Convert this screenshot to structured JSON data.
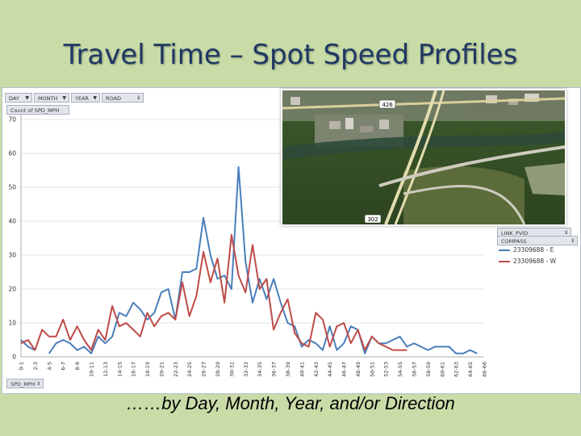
{
  "slide": {
    "title": "Travel Time – Spot Speed Profiles",
    "caption": "……by Day, Month, Year, and/or Direction"
  },
  "filters": {
    "day": "DAY",
    "month": "MONTH",
    "year": "YEAR",
    "road": "ROAD",
    "measure": "Count of SPD_MPH",
    "axis_field": "SPD_MPH",
    "link_field": "LINK_PVID",
    "compass_field": "COMPASS"
  },
  "map": {
    "shield_north": "426",
    "shield_south": "302"
  },
  "colors": {
    "east": "#4a7ebb",
    "west": "#be4b48",
    "title": "#1f3864",
    "background": "#c9dca8"
  },
  "chart_data": {
    "type": "line",
    "title": "",
    "xlabel": "SPD_MPH",
    "ylabel": "Count of SPD_MPH",
    "ylim": [
      0,
      70
    ],
    "yticks": [
      0,
      10,
      20,
      30,
      40,
      50,
      60,
      70
    ],
    "grid": true,
    "legend": "right",
    "categories": [
      "0-1",
      "2-3",
      "4-5",
      "6-7",
      "8-9",
      "10-11",
      "12-13",
      "14-15",
      "16-17",
      "18-19",
      "20-21",
      "22-23",
      "24-25",
      "26-27",
      "28-29",
      "30-31",
      "32-33",
      "34-35",
      "36-37",
      "38-39",
      "40-41",
      "42-43",
      "44-45",
      "46-47",
      "48-49",
      "50-51",
      "52-53",
      "54-55",
      "56-57",
      "58-59",
      "60-61",
      "62-63",
      "64-65",
      "66-66"
    ],
    "x": [
      0,
      1,
      2,
      3,
      4,
      5,
      6,
      7,
      8,
      9,
      10,
      11,
      12,
      13,
      14,
      15,
      16,
      17,
      18,
      19,
      20,
      21,
      22,
      23,
      24,
      25,
      26,
      27,
      28,
      29,
      30,
      31,
      32,
      33,
      34,
      35,
      36,
      37,
      38,
      39,
      40,
      41,
      42,
      43,
      44,
      45,
      46,
      47,
      48,
      49,
      50,
      51,
      52,
      53,
      54,
      55,
      56,
      57,
      58,
      59,
      60,
      61,
      62,
      63,
      64,
      65,
      66
    ],
    "series": [
      {
        "name": "23309688 - E",
        "values": [
          5,
          3,
          2,
          null,
          1,
          4,
          5,
          4,
          2,
          3,
          1,
          6,
          4,
          6,
          13,
          12,
          16,
          14,
          11,
          13,
          19,
          20,
          11,
          25,
          25,
          26,
          41,
          30,
          23,
          24,
          20,
          56,
          28,
          16,
          23,
          17,
          23,
          16,
          10,
          9,
          3,
          5,
          4,
          2,
          9,
          2,
          4,
          9,
          8,
          1,
          6,
          4,
          4,
          5,
          6,
          3,
          4,
          3,
          2,
          3,
          3,
          3,
          1,
          1,
          2,
          1,
          null
        ],
        "color": "#4a7ebb"
      },
      {
        "name": "23309688 - W",
        "values": [
          4,
          5,
          2,
          8,
          6,
          6,
          11,
          5,
          9,
          5,
          2,
          8,
          5,
          15,
          9,
          10,
          8,
          6,
          13,
          9,
          12,
          13,
          11,
          22,
          12,
          18,
          31,
          22,
          29,
          16,
          36,
          24,
          19,
          33,
          20,
          23,
          8,
          13,
          17,
          7,
          4,
          3,
          13,
          11,
          3,
          9,
          10,
          4,
          8,
          2,
          6,
          4,
          3,
          2,
          2,
          2,
          null,
          null,
          null,
          null,
          null,
          null,
          null,
          null,
          null,
          null,
          null
        ],
        "color": "#be4b48"
      }
    ]
  }
}
